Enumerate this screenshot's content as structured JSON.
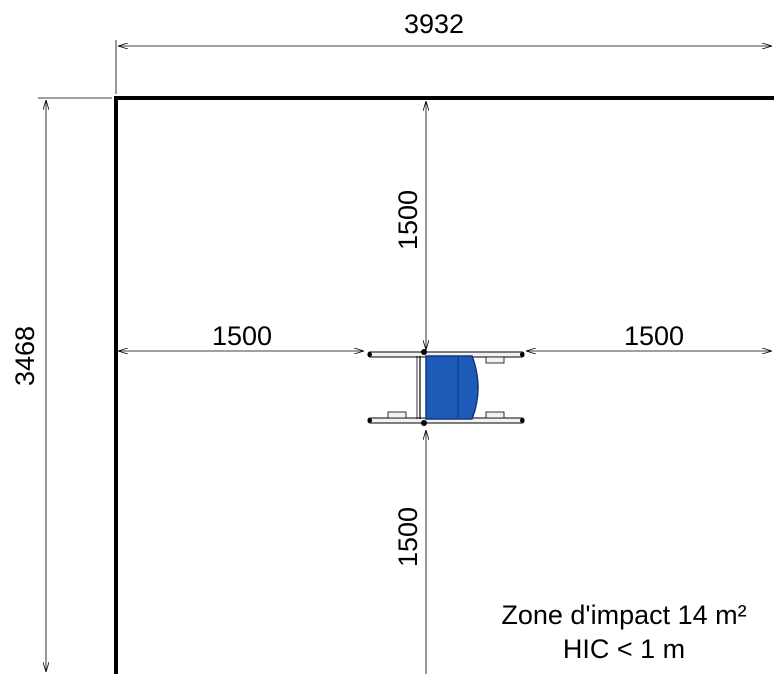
{
  "dimensions": {
    "total_width": "3932",
    "total_height": "3468",
    "clearance_top": "1500",
    "clearance_bottom": "1500",
    "clearance_left": "1500",
    "clearance_right": "1500"
  },
  "note": {
    "line1": "Zone d'impact 14 m²",
    "line2": "HIC < 1 m"
  },
  "colors": {
    "seat_blue": "#1e5bb8",
    "seat_dark": "#0f3a80",
    "line": "#000000"
  }
}
